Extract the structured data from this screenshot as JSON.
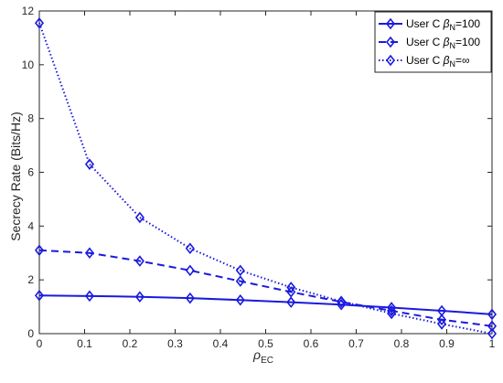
{
  "colors": {
    "series": "#1a1adf",
    "axis": "#262626",
    "grid": "#000000"
  },
  "chart_data": {
    "type": "line",
    "title": "",
    "xlabel": {
      "main": "ρ",
      "sub": "EC"
    },
    "ylabel": "Secrecy Rate (Bits/Hz)",
    "xlim": [
      0,
      1
    ],
    "ylim": [
      0,
      12
    ],
    "xticks": [
      0,
      0.1,
      0.2,
      0.3,
      0.4,
      0.5,
      0.6,
      0.7,
      0.8,
      0.9,
      1
    ],
    "yticks": [
      0,
      2,
      4,
      6,
      8,
      10,
      12
    ],
    "xtick_labels": [
      "0",
      "0.1",
      "0.2",
      "0.3",
      "0.4",
      "0.5",
      "0.6",
      "0.7",
      "0.8",
      "0.9",
      "1"
    ],
    "ytick_labels": [
      "0",
      "2",
      "4",
      "6",
      "8",
      "10",
      "12"
    ],
    "grid": false,
    "legend_position": "top-right",
    "marker": "diamond",
    "x": [
      0,
      0.111,
      0.222,
      0.333,
      0.444,
      0.556,
      0.667,
      0.778,
      0.889,
      1
    ],
    "series": [
      {
        "name": "User C β_N=100",
        "legend_parts": [
          "User C ",
          "β",
          "N",
          "=100"
        ],
        "dash": "solid",
        "values": [
          1.42,
          1.4,
          1.37,
          1.32,
          1.25,
          1.17,
          1.08,
          0.97,
          0.85,
          0.72
        ]
      },
      {
        "name": "User C β_N=100",
        "legend_parts": [
          "User C ",
          "β",
          "N",
          "=100"
        ],
        "dash": "dashed",
        "values": [
          3.1,
          3.0,
          2.7,
          2.35,
          1.95,
          1.55,
          1.18,
          0.85,
          0.52,
          0.28
        ]
      },
      {
        "name": "User C β_N=∞",
        "legend_parts": [
          "User C ",
          "β",
          "N",
          "=∞"
        ],
        "dash": "dotted",
        "values": [
          11.55,
          6.3,
          4.32,
          3.17,
          2.35,
          1.72,
          1.2,
          0.75,
          0.36,
          0.0
        ]
      }
    ]
  }
}
